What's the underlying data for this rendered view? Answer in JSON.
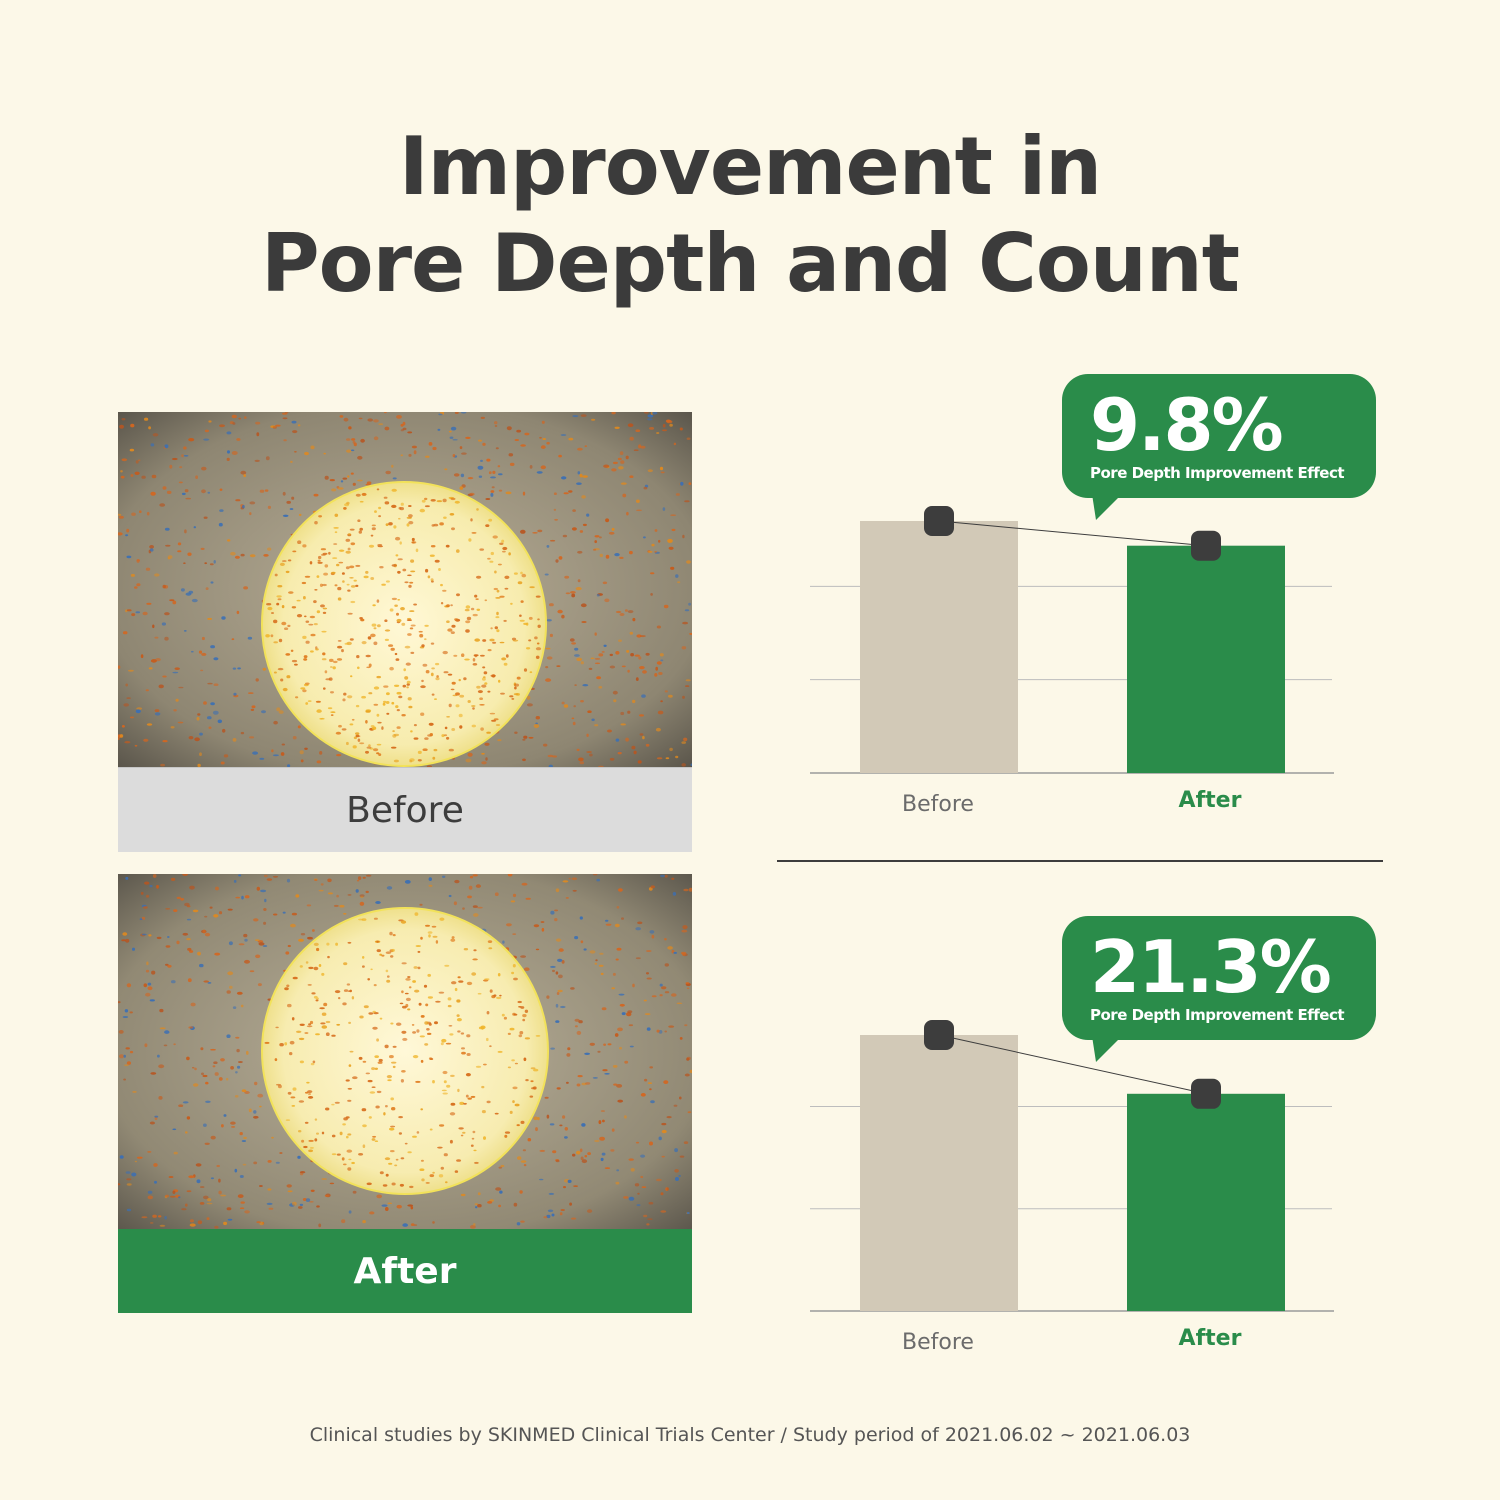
{
  "title": {
    "line1": "Improvement in",
    "line2": "Pore Depth and Count"
  },
  "photos": {
    "before_label": "Before",
    "after_label": "After"
  },
  "colors": {
    "background": "#fcf8e8",
    "accent_green": "#2a8c4a",
    "before_bar": "#d2c9b7",
    "marker": "#3d3d3d",
    "title_text": "#3b3b3b"
  },
  "chart_data": [
    {
      "type": "bar",
      "categories": [
        "Before",
        "After"
      ],
      "values": [
        100,
        90.2
      ],
      "callout": {
        "value": "9.8%",
        "label": "Pore Depth Improvement Effect"
      },
      "grid": true,
      "legend": "none",
      "ylim": [
        0,
        125
      ]
    },
    {
      "type": "bar",
      "categories": [
        "Before",
        "After"
      ],
      "values": [
        100,
        78.7
      ],
      "callout": {
        "value": "21.3%",
        "label": "Pore Depth Improvement Effect"
      },
      "grid": true,
      "legend": "none",
      "ylim": [
        0,
        125
      ]
    }
  ],
  "footnote": "Clinical studies by SKINMED Clinical Trials Center / Study period of 2021.06.02 ~ 2021.06.03"
}
